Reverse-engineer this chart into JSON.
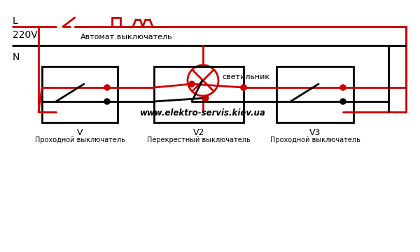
{
  "title": "",
  "bg_color": "#ffffff",
  "red": "#cc0000",
  "black": "#000000",
  "gray": "#888888",
  "website": "www.elektro-servis.kiev.ua",
  "label_L": "L",
  "label_220V": "220V",
  "label_N": "N",
  "label_avtomat": "Автомат.выключатель",
  "label_svetilnik": "светильник",
  "label_V": "V",
  "label_V_desc": "Проходной выключатель",
  "label_V2": "V2",
  "label_V2_desc": "Перекрестный выключатель",
  "label_V3": "V3",
  "label_V3_desc": "Проходной выключатель"
}
